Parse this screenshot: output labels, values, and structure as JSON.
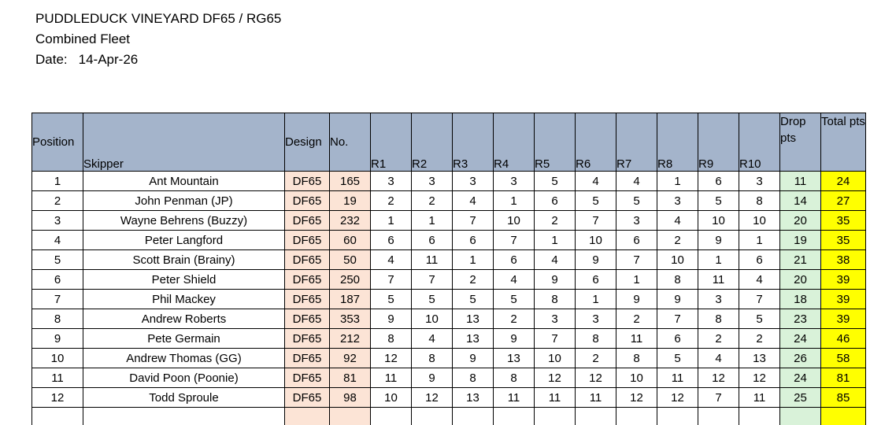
{
  "header": {
    "title": "PUDDLEDUCK VINEYARD DF65 / RG65",
    "subtitle": "Combined Fleet",
    "date_label": "Date:",
    "date_value": "14-Apr-26"
  },
  "table": {
    "columns": [
      "Position",
      "Skipper",
      "Design",
      "No.",
      "R1",
      "R2",
      "R3",
      "R4",
      "R5",
      "R6",
      "R7",
      "R8",
      "R9",
      "R10",
      "Drop pts",
      "Total pts"
    ],
    "rows": [
      {
        "position": "1",
        "skipper": "Ant Mountain",
        "design": "DF65",
        "no": "165",
        "races": [
          "3",
          "3",
          "3",
          "3",
          "5",
          "4",
          "4",
          "1",
          "6",
          "3"
        ],
        "drop": "11",
        "total": "24"
      },
      {
        "position": "2",
        "skipper": "John Penman (JP)",
        "design": "DF65",
        "no": "19",
        "races": [
          "2",
          "2",
          "4",
          "1",
          "6",
          "5",
          "5",
          "3",
          "5",
          "8"
        ],
        "drop": "14",
        "total": "27"
      },
      {
        "position": "3",
        "skipper": "Wayne Behrens (Buzzy)",
        "design": "DF65",
        "no": "232",
        "races": [
          "1",
          "1",
          "7",
          "10",
          "2",
          "7",
          "3",
          "4",
          "10",
          "10"
        ],
        "drop": "20",
        "total": "35"
      },
      {
        "position": "4",
        "skipper": "Peter Langford",
        "design": "DF65",
        "no": "60",
        "races": [
          "6",
          "6",
          "6",
          "7",
          "1",
          "10",
          "6",
          "2",
          "9",
          "1"
        ],
        "drop": "19",
        "total": "35"
      },
      {
        "position": "5",
        "skipper": "Scott Brain (Brainy)",
        "design": "DF65",
        "no": "50",
        "races": [
          "4",
          "11",
          "1",
          "6",
          "4",
          "9",
          "7",
          "10",
          "1",
          "6"
        ],
        "drop": "21",
        "total": "38"
      },
      {
        "position": "6",
        "skipper": "Peter Shield",
        "design": "DF65",
        "no": "250",
        "races": [
          "7",
          "7",
          "2",
          "4",
          "9",
          "6",
          "1",
          "8",
          "11",
          "4"
        ],
        "drop": "20",
        "total": "39"
      },
      {
        "position": "7",
        "skipper": "Phil Mackey",
        "design": "DF65",
        "no": "187",
        "races": [
          "5",
          "5",
          "5",
          "5",
          "8",
          "1",
          "9",
          "9",
          "3",
          "7"
        ],
        "drop": "18",
        "total": "39"
      },
      {
        "position": "8",
        "skipper": "Andrew Roberts",
        "design": "DF65",
        "no": "353",
        "races": [
          "9",
          "10",
          "13",
          "2",
          "3",
          "3",
          "2",
          "7",
          "8",
          "5"
        ],
        "drop": "23",
        "total": "39"
      },
      {
        "position": "9",
        "skipper": "Pete Germain",
        "design": "DF65",
        "no": "212",
        "races": [
          "8",
          "4",
          "13",
          "9",
          "7",
          "8",
          "11",
          "6",
          "2",
          "2"
        ],
        "drop": "24",
        "total": "46"
      },
      {
        "position": "10",
        "skipper": "Andrew Thomas (GG)",
        "design": "DF65",
        "no": "92",
        "races": [
          "12",
          "8",
          "9",
          "13",
          "10",
          "2",
          "8",
          "5",
          "4",
          "13"
        ],
        "drop": "26",
        "total": "58"
      },
      {
        "position": "11",
        "skipper": "David Poon (Poonie)",
        "design": "DF65",
        "no": "81",
        "races": [
          "11",
          "9",
          "8",
          "8",
          "12",
          "12",
          "10",
          "11",
          "12",
          "12"
        ],
        "drop": "24",
        "total": "81"
      },
      {
        "position": "12",
        "skipper": "Todd Sproule",
        "design": "DF65",
        "no": "98",
        "races": [
          "10",
          "12",
          "13",
          "11",
          "11",
          "11",
          "12",
          "12",
          "7",
          "11"
        ],
        "drop": "25",
        "total": "85"
      },
      {
        "position": "",
        "skipper": "",
        "design": "",
        "no": "",
        "races": [
          "",
          "",
          "",
          "",
          "",
          "",
          "",
          "",
          "",
          ""
        ],
        "drop": "",
        "total": ""
      }
    ]
  },
  "colors": {
    "header_bg": "#a4b4cb",
    "design_no_bg": "#fce4d6",
    "drop_pts_bg": "#d9f2d9",
    "total_pts_bg": "#ffff00",
    "grid": "#000000"
  }
}
